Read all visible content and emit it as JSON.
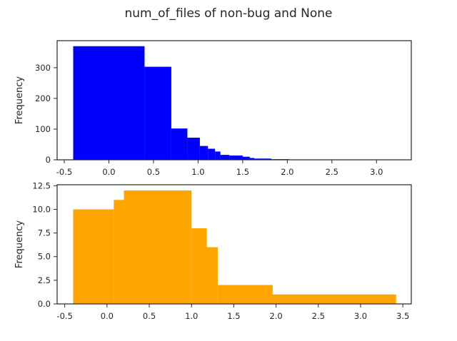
{
  "figure": {
    "title": "num_of_files of non-bug and None"
  },
  "chart_data": [
    {
      "type": "histogram",
      "title": "num_of_files of non-bug and None",
      "xlabel": "",
      "ylabel": "Frequency",
      "color": "#0000ff",
      "xlim": [
        -0.58,
        3.39
      ],
      "ylim": [
        0,
        388
      ],
      "xticks": [
        -0.5,
        0.0,
        0.5,
        1.0,
        1.5,
        2.0,
        2.5,
        3.0
      ],
      "xtick_labels": [
        "-0.5",
        "0.0",
        "0.5",
        "1.0",
        "1.5",
        "2.0",
        "2.5",
        "3.0"
      ],
      "yticks": [
        0,
        100,
        200,
        300
      ],
      "ytick_labels": [
        "0",
        "100",
        "200",
        "300"
      ],
      "bins": [
        {
          "x0": -0.4,
          "x1": 0.4,
          "value": 370
        },
        {
          "x0": 0.4,
          "x1": 0.7,
          "value": 303
        },
        {
          "x0": 0.7,
          "x1": 0.88,
          "value": 102
        },
        {
          "x0": 0.88,
          "x1": 1.02,
          "value": 72
        },
        {
          "x0": 1.02,
          "x1": 1.11,
          "value": 45
        },
        {
          "x0": 1.11,
          "x1": 1.19,
          "value": 36
        },
        {
          "x0": 1.19,
          "x1": 1.25,
          "value": 27
        },
        {
          "x0": 1.25,
          "x1": 1.35,
          "value": 16
        },
        {
          "x0": 1.35,
          "x1": 1.5,
          "value": 14
        },
        {
          "x0": 1.5,
          "x1": 1.58,
          "value": 10
        },
        {
          "x0": 1.58,
          "x1": 1.63,
          "value": 6
        },
        {
          "x0": 1.63,
          "x1": 1.82,
          "value": 4
        },
        {
          "x0": 1.82,
          "x1": 2.02,
          "value": 2
        },
        {
          "x0": 2.02,
          "x1": 2.6,
          "value": 1
        },
        {
          "x0": 2.6,
          "x1": 3.21,
          "value": 0.8
        }
      ]
    },
    {
      "type": "histogram",
      "xlabel": "",
      "ylabel": "Frequency",
      "color": "#ffa500",
      "xlim": [
        -0.59,
        3.6
      ],
      "ylim": [
        0,
        12.6
      ],
      "xticks": [
        -0.5,
        0.0,
        0.5,
        1.0,
        1.5,
        2.0,
        2.5,
        3.0,
        3.5
      ],
      "xtick_labels": [
        "-0.5",
        "0.0",
        "0.5",
        "1.0",
        "1.5",
        "2.0",
        "2.5",
        "3.0",
        "3.5"
      ],
      "yticks": [
        0.0,
        2.5,
        5.0,
        7.5,
        10.0,
        12.5
      ],
      "ytick_labels": [
        "0.0",
        "2.5",
        "5.0",
        "7.5",
        "10.0",
        "12.5"
      ],
      "bins": [
        {
          "x0": -0.4,
          "x1": 0.08,
          "value": 10
        },
        {
          "x0": 0.08,
          "x1": 0.2,
          "value": 11
        },
        {
          "x0": 0.2,
          "x1": 1.0,
          "value": 12
        },
        {
          "x0": 1.0,
          "x1": 1.18,
          "value": 8
        },
        {
          "x0": 1.18,
          "x1": 1.31,
          "value": 6
        },
        {
          "x0": 1.31,
          "x1": 1.96,
          "value": 2
        },
        {
          "x0": 1.96,
          "x1": 3.42,
          "value": 1
        }
      ]
    }
  ]
}
